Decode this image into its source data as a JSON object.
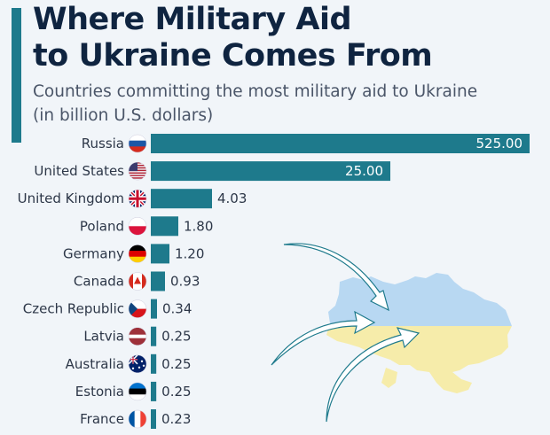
{
  "chart_data": {
    "type": "bar",
    "orientation": "horizontal",
    "title": "Where Military Aid to Ukraine Comes From",
    "title_lines": [
      "Where Military Aid",
      "to Ukraine Comes From"
    ],
    "subtitle_lines": [
      "Countries committing the most military aid to Ukraine",
      "(in billion U.S. dollars)"
    ],
    "xlabel": "",
    "ylabel": "",
    "categories": [
      "Russia",
      "United States",
      "United Kingdom",
      "Poland",
      "Germany",
      "Canada",
      "Czech Republic",
      "Latvia",
      "Australia",
      "Estonia",
      "France"
    ],
    "values": [
      525.0,
      25.0,
      4.03,
      1.8,
      1.2,
      0.93,
      0.34,
      0.25,
      0.25,
      0.25,
      0.23
    ],
    "value_labels": [
      "525.00",
      "25.00",
      "4.03",
      "1.80",
      "1.20",
      "0.93",
      "0.34",
      "0.25",
      "0.25",
      "0.25",
      "0.23"
    ],
    "flags": [
      "russia-flag",
      "usa-flag",
      "uk-flag",
      "poland-flag",
      "germany-flag",
      "canada-flag",
      "czech-flag",
      "latvia-flag",
      "australia-flag",
      "estonia-flag",
      "france-flag"
    ],
    "bar_color": "#1e7a8c",
    "grid": false
  }
}
